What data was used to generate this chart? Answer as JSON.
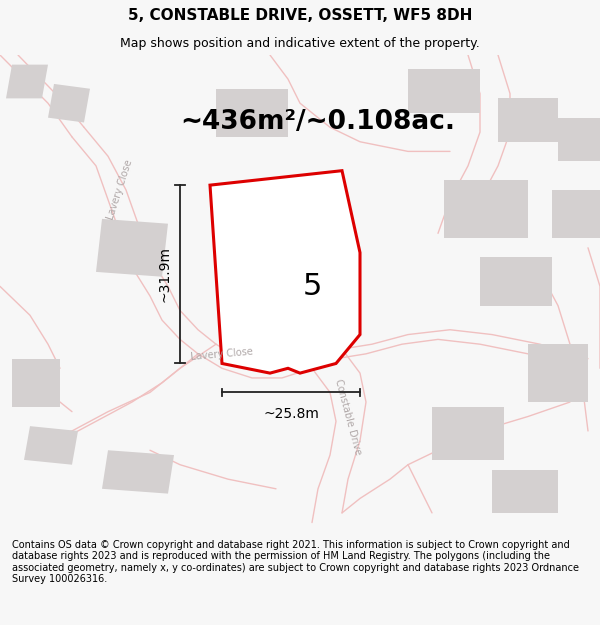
{
  "title": "5, CONSTABLE DRIVE, OSSETT, WF5 8DH",
  "subtitle": "Map shows position and indicative extent of the property.",
  "footer": "Contains OS data © Crown copyright and database right 2021. This information is subject to Crown copyright and database rights 2023 and is reproduced with the permission of HM Land Registry. The polygons (including the associated geometry, namely x, y co-ordinates) are subject to Crown copyright and database rights 2023 Ordnance Survey 100026316.",
  "area_label": "~436m²/~0.108ac.",
  "property_number": "5",
  "dim_height": "~31.9m",
  "dim_width": "~25.8m",
  "bg_color": "#f7f7f7",
  "map_bg": "#f2efef",
  "road_color": "#f0c0c0",
  "building_color": "#d4d0d0",
  "plot_line_color": "#dd0000",
  "plot_fill_color": "#ffffff",
  "dim_line_color": "#222222",
  "road_label_color": "#b0a8a8",
  "title_fontsize": 11,
  "subtitle_fontsize": 9,
  "footer_fontsize": 7,
  "area_label_fontsize": 19,
  "property_number_fontsize": 22,
  "dim_fontsize": 10
}
